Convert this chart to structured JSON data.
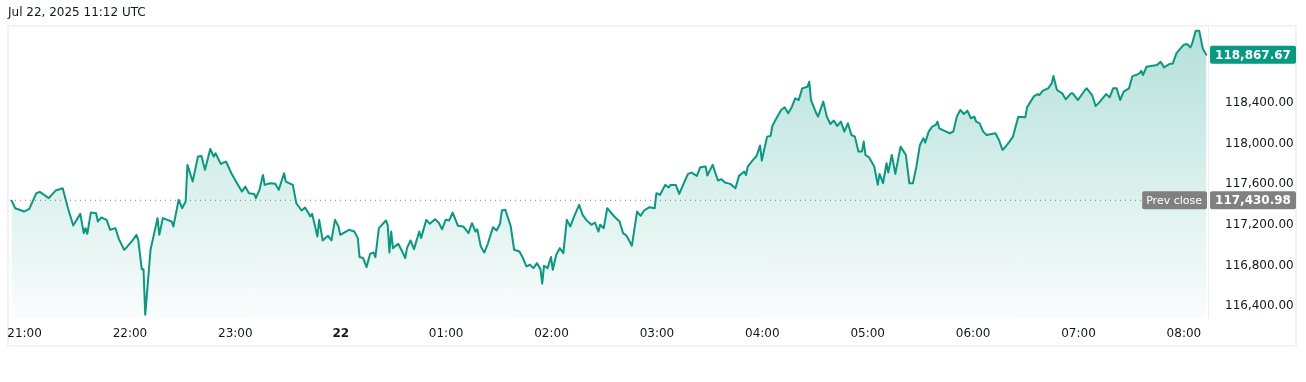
{
  "chart_data": {
    "type": "area",
    "title": "Jul 22, 2025 11:12 UTC",
    "xlim": [
      "2025-07-21T20:52",
      "2025-07-22T08:14"
    ],
    "xticks": [
      {
        "value": "2025-07-21T21:00",
        "label": "21:00"
      },
      {
        "value": "2025-07-21T22:00",
        "label": "22:00"
      },
      {
        "value": "2025-07-21T23:00",
        "label": "23:00"
      },
      {
        "value": "2025-07-22T00:00",
        "label": "22"
      },
      {
        "value": "2025-07-22T01:00",
        "label": "01:00"
      },
      {
        "value": "2025-07-22T02:00",
        "label": "02:00"
      },
      {
        "value": "2025-07-22T03:00",
        "label": "03:00"
      },
      {
        "value": "2025-07-22T04:00",
        "label": "04:00"
      },
      {
        "value": "2025-07-22T05:00",
        "label": "05:00"
      },
      {
        "value": "2025-07-22T06:00",
        "label": "06:00"
      },
      {
        "value": "2025-07-22T07:00",
        "label": "07:00"
      },
      {
        "value": "2025-07-22T08:00",
        "label": "08:00"
      }
    ],
    "ylim": [
      116270,
      119150
    ],
    "yticks": [
      {
        "value": 116400,
        "label": "116,400.00"
      },
      {
        "value": 116800,
        "label": "116,800.00"
      },
      {
        "value": 117200,
        "label": "117,200.00"
      },
      {
        "value": 117600,
        "label": "117,600.00"
      },
      {
        "value": 118000,
        "label": "118,000.00"
      },
      {
        "value": 118400,
        "label": "118,400.00"
      }
    ],
    "grid": false,
    "ref_lines": [
      {
        "axis": "y",
        "value": 117430.98,
        "label": "Prev close",
        "line_style": "dotted",
        "color": "#787b86"
      }
    ],
    "annotations": [
      {
        "text": "118,867.67",
        "x": "2025-07-22T08:13",
        "y": 118867.67
      },
      {
        "text": "117,430.98",
        "x": "2025-07-22T08:14",
        "y": 117430.98
      }
    ],
    "series": [
      {
        "color": "#089981",
        "x": [
          "2025-07-21T20:53",
          "2025-07-21T20:55",
          "2025-07-21T21:00",
          "2025-07-21T21:03",
          "2025-07-21T21:07",
          "2025-07-21T21:09",
          "2025-07-21T21:14",
          "2025-07-21T21:18",
          "2025-07-21T21:22",
          "2025-07-21T21:25",
          "2025-07-21T21:28",
          "2025-07-21T21:32",
          "2025-07-21T21:34",
          "2025-07-21T21:35",
          "2025-07-21T21:36",
          "2025-07-21T21:38",
          "2025-07-21T21:41",
          "2025-07-21T21:42",
          "2025-07-21T21:44",
          "2025-07-21T21:47",
          "2025-07-21T21:49",
          "2025-07-21T21:52",
          "2025-07-21T21:54",
          "2025-07-21T21:57",
          "2025-07-21T21:58",
          "2025-07-21T22:02",
          "2025-07-21T22:04",
          "2025-07-21T22:05",
          "2025-07-21T22:07",
          "2025-07-21T22:08",
          "2025-07-21T22:09",
          "2025-07-21T22:12",
          "2025-07-21T22:16",
          "2025-07-21T22:17",
          "2025-07-21T22:19",
          "2025-07-21T22:24",
          "2025-07-21T22:25",
          "2025-07-21T22:28",
          "2025-07-21T22:30",
          "2025-07-21T22:32",
          "2025-07-21T22:33",
          "2025-07-21T22:36",
          "2025-07-21T22:39",
          "2025-07-21T22:41",
          "2025-07-21T22:43",
          "2025-07-21T22:46",
          "2025-07-21T22:48",
          "2025-07-21T22:49",
          "2025-07-21T22:52",
          "2025-07-21T22:55",
          "2025-07-21T22:58",
          "2025-07-21T23:01",
          "2025-07-21T23:04",
          "2025-07-21T23:06",
          "2025-07-21T23:08",
          "2025-07-21T23:11",
          "2025-07-21T23:12",
          "2025-07-21T23:14",
          "2025-07-21T23:16",
          "2025-07-21T23:17",
          "2025-07-21T23:20",
          "2025-07-21T23:23",
          "2025-07-21T23:25",
          "2025-07-21T23:28",
          "2025-07-21T23:29",
          "2025-07-21T23:33",
          "2025-07-21T23:35",
          "2025-07-21T23:38",
          "2025-07-21T23:40",
          "2025-07-21T23:43",
          "2025-07-21T23:44",
          "2025-07-21T23:47",
          "2025-07-21T23:48",
          "2025-07-21T23:50",
          "2025-07-21T23:53",
          "2025-07-21T23:55",
          "2025-07-21T23:57",
          "2025-07-21T23:59",
          "2025-07-22T00:00",
          "2025-07-22T00:05",
          "2025-07-22T00:08",
          "2025-07-22T00:10",
          "2025-07-22T00:11",
          "2025-07-22T00:13",
          "2025-07-22T00:15",
          "2025-07-22T00:17",
          "2025-07-22T00:19",
          "2025-07-22T00:20",
          "2025-07-22T00:22",
          "2025-07-22T00:26",
          "2025-07-22T00:27",
          "2025-07-22T00:28",
          "2025-07-22T00:29",
          "2025-07-22T00:30",
          "2025-07-22T00:33",
          "2025-07-22T00:35",
          "2025-07-22T00:37",
          "2025-07-22T00:38",
          "2025-07-22T00:40",
          "2025-07-22T00:42",
          "2025-07-22T00:45",
          "2025-07-22T00:46",
          "2025-07-22T00:49",
          "2025-07-22T00:51",
          "2025-07-22T00:54",
          "2025-07-22T00:56",
          "2025-07-22T00:58",
          "2025-07-22T01:00",
          "2025-07-22T01:02",
          "2025-07-22T01:04",
          "2025-07-22T01:07",
          "2025-07-22T01:10",
          "2025-07-22T01:13",
          "2025-07-22T01:15",
          "2025-07-22T01:17",
          "2025-07-22T01:18",
          "2025-07-22T01:20",
          "2025-07-22T01:22",
          "2025-07-22T01:24",
          "2025-07-22T01:27",
          "2025-07-22T01:29",
          "2025-07-22T01:31",
          "2025-07-22T01:32",
          "2025-07-22T01:34",
          "2025-07-22T01:37",
          "2025-07-22T01:39",
          "2025-07-22T01:42",
          "2025-07-22T01:44",
          "2025-07-22T01:46",
          "2025-07-22T01:48",
          "2025-07-22T01:50",
          "2025-07-22T01:52",
          "2025-07-22T01:54",
          "2025-07-22T01:55",
          "2025-07-22T01:56",
          "2025-07-22T01:58",
          "2025-07-22T02:00",
          "2025-07-22T02:01",
          "2025-07-22T02:03",
          "2025-07-22T02:05",
          "2025-07-22T02:07",
          "2025-07-22T02:09",
          "2025-07-22T02:11",
          "2025-07-22T02:13",
          "2025-07-22T02:16",
          "2025-07-22T02:18",
          "2025-07-22T02:20",
          "2025-07-22T02:23",
          "2025-07-22T02:25",
          "2025-07-22T02:27",
          "2025-07-22T02:28",
          "2025-07-22T02:30",
          "2025-07-22T02:32",
          "2025-07-22T02:36",
          "2025-07-22T02:39",
          "2025-07-22T02:41",
          "2025-07-22T02:43",
          "2025-07-22T02:46",
          "2025-07-22T02:49",
          "2025-07-22T02:51",
          "2025-07-22T02:53",
          "2025-07-22T02:56",
          "2025-07-22T02:59",
          "2025-07-22T03:00",
          "2025-07-22T03:02",
          "2025-07-22T03:05",
          "2025-07-22T03:07",
          "2025-07-22T03:08",
          "2025-07-22T03:11",
          "2025-07-22T03:13",
          "2025-07-22T03:16",
          "2025-07-22T03:18",
          "2025-07-22T03:20",
          "2025-07-22T03:23",
          "2025-07-22T03:25",
          "2025-07-22T03:28",
          "2025-07-22T03:29",
          "2025-07-22T03:32",
          "2025-07-22T03:35",
          "2025-07-22T03:37",
          "2025-07-22T03:39",
          "2025-07-22T03:42",
          "2025-07-22T03:45",
          "2025-07-22T03:47",
          "2025-07-22T03:50",
          "2025-07-22T03:51",
          "2025-07-22T03:52",
          "2025-07-22T03:55",
          "2025-07-22T03:57",
          "2025-07-22T03:59",
          "2025-07-22T04:00",
          "2025-07-22T04:03",
          "2025-07-22T04:05",
          "2025-07-22T04:06",
          "2025-07-22T04:08",
          "2025-07-22T04:11",
          "2025-07-22T04:13",
          "2025-07-22T04:15",
          "2025-07-22T04:17",
          "2025-07-22T04:19",
          "2025-07-22T04:21",
          "2025-07-22T04:23",
          "2025-07-22T04:26",
          "2025-07-22T04:27",
          "2025-07-22T04:28",
          "2025-07-22T04:31",
          "2025-07-22T04:32",
          "2025-07-22T04:35",
          "2025-07-22T04:37",
          "2025-07-22T04:39",
          "2025-07-22T04:41",
          "2025-07-22T04:43",
          "2025-07-22T04:45",
          "2025-07-22T04:47",
          "2025-07-22T04:49",
          "2025-07-22T04:51",
          "2025-07-22T04:53",
          "2025-07-22T04:55",
          "2025-07-22T04:57",
          "2025-07-22T04:58",
          "2025-07-22T04:59",
          "2025-07-22T05:01",
          "2025-07-22T05:04",
          "2025-07-22T05:06",
          "2025-07-22T05:07",
          "2025-07-22T05:09",
          "2025-07-22T05:11",
          "2025-07-22T05:12",
          "2025-07-22T05:14",
          "2025-07-22T05:16",
          "2025-07-22T05:19",
          "2025-07-22T05:22",
          "2025-07-22T05:24",
          "2025-07-22T05:26",
          "2025-07-22T05:28",
          "2025-07-22T05:30",
          "2025-07-22T05:32",
          "2025-07-22T05:33",
          "2025-07-22T05:35",
          "2025-07-22T05:37",
          "2025-07-22T05:39",
          "2025-07-22T05:40",
          "2025-07-22T05:41",
          "2025-07-22T05:44",
          "2025-07-22T05:47",
          "2025-07-22T05:49",
          "2025-07-22T05:51",
          "2025-07-22T05:53",
          "2025-07-22T05:55",
          "2025-07-22T05:57",
          "2025-07-22T05:59",
          "2025-07-22T06:01",
          "2025-07-22T06:02",
          "2025-07-22T06:04",
          "2025-07-22T06:06",
          "2025-07-22T06:08",
          "2025-07-22T06:13",
          "2025-07-22T06:15",
          "2025-07-22T06:17",
          "2025-07-22T06:18",
          "2025-07-22T06:21",
          "2025-07-22T06:23",
          "2025-07-22T06:26",
          "2025-07-22T06:30",
          "2025-07-22T06:31",
          "2025-07-22T06:33",
          "2025-07-22T06:35",
          "2025-07-22T06:37",
          "2025-07-22T06:38",
          "2025-07-22T06:40",
          "2025-07-22T06:43",
          "2025-07-22T06:45",
          "2025-07-22T06:46",
          "2025-07-22T06:48",
          "2025-07-22T06:51",
          "2025-07-22T06:53",
          "2025-07-22T06:56",
          "2025-07-22T06:57",
          "2025-07-22T07:00",
          "2025-07-22T07:04",
          "2025-07-22T07:05",
          "2025-07-22T07:08",
          "2025-07-22T07:10",
          "2025-07-22T07:12",
          "2025-07-22T07:16",
          "2025-07-22T07:18",
          "2025-07-22T07:20",
          "2025-07-22T07:22",
          "2025-07-22T07:24",
          "2025-07-22T07:26",
          "2025-07-22T07:29",
          "2025-07-22T07:31",
          "2025-07-22T07:33",
          "2025-07-22T07:35",
          "2025-07-22T07:36",
          "2025-07-22T07:37",
          "2025-07-22T07:39",
          "2025-07-22T07:45",
          "2025-07-22T07:47",
          "2025-07-22T07:49",
          "2025-07-22T07:52",
          "2025-07-22T07:54",
          "2025-07-22T07:56",
          "2025-07-22T08:00",
          "2025-07-22T08:02",
          "2025-07-22T08:04",
          "2025-07-22T08:05",
          "2025-07-22T08:07",
          "2025-07-22T08:09",
          "2025-07-22T08:11",
          "2025-07-22T08:13"
        ],
        "values": [
          117425,
          117353,
          117320,
          117347,
          117501,
          117514,
          117452,
          117527,
          117550,
          117353,
          117182,
          117297,
          117107,
          117156,
          117100,
          117310,
          117304,
          117222,
          117261,
          117238,
          117140,
          117156,
          117048,
          116943,
          116959,
          117041,
          117090,
          117041,
          116752,
          116752,
          116303,
          116943,
          117255,
          117090,
          117255,
          117222,
          117173,
          117435,
          117353,
          117419,
          117780,
          117616,
          117862,
          117868,
          117731,
          117937,
          117862,
          117895,
          117790,
          117813,
          117698,
          117606,
          117517,
          117566,
          117501,
          117494,
          117452,
          117534,
          117681,
          117583,
          117599,
          117593,
          117534,
          117698,
          117616,
          117583,
          117402,
          117330,
          117360,
          117271,
          117297,
          117074,
          117238,
          117035,
          117081,
          117035,
          117238,
          117173,
          117090,
          117140,
          117123,
          117058,
          116871,
          116861,
          116772,
          116903,
          116916,
          116871,
          117156,
          117232,
          117189,
          116916,
          117123,
          116959,
          117002,
          116936,
          116861,
          116959,
          117035,
          116949,
          117123,
          117058,
          117238,
          117199,
          117245,
          117212,
          117146,
          117238,
          117232,
          117310,
          117179,
          117173,
          117107,
          117205,
          117123,
          117146,
          116976,
          116916,
          117002,
          117166,
          117133,
          117199,
          117330,
          117337,
          117179,
          116943,
          116926,
          116861,
          116779,
          116795,
          116762,
          116811,
          116752,
          116608,
          116785,
          116762,
          116871,
          116746,
          116893,
          116959,
          116910,
          117238,
          117173,
          117264,
          117386,
          117287,
          117238,
          117189,
          117212,
          117123,
          117189,
          117156,
          117353,
          117271,
          117222,
          117107,
          117081,
          116982,
          117320,
          117278,
          117330,
          117363,
          117353,
          117501,
          117484,
          117583,
          117557,
          117583,
          117583,
          117494,
          117616,
          117691,
          117704,
          117672,
          117757,
          117764,
          117675,
          117780,
          117626,
          117639,
          117606,
          117593,
          117550,
          117672,
          117714,
          117681,
          117764,
          117829,
          117868,
          117970,
          117823,
          118059,
          118066,
          118164,
          118230,
          118322,
          118348,
          118289,
          118348,
          118436,
          118420,
          118535,
          118551,
          118601,
          118420,
          118289,
          118256,
          118404,
          118256,
          118184,
          118217,
          118164,
          118207,
          118108,
          118190,
          118075,
          118059,
          117911,
          117911,
          118010,
          117878,
          117855,
          117764,
          117583,
          117691,
          117599,
          117796,
          117704,
          117878,
          117691,
          117960,
          117878,
          117599,
          117599,
          117763,
          117977,
          118043,
          118000,
          118108,
          118157,
          118174,
          118207,
          118141,
          118115,
          118092,
          118108,
          118256,
          118322,
          118282,
          118315,
          118240,
          118256,
          118207,
          118190,
          118108,
          118075,
          118092,
          118026,
          117928,
          117944,
          118010,
          118059,
          118256,
          118249,
          118348,
          118404,
          118459,
          118479,
          118469,
          118512,
          118535,
          118584,
          118656,
          118519,
          118486,
          118427,
          118486,
          118486,
          118420,
          118519,
          118535,
          118469,
          118361,
          118394,
          118479,
          118446,
          118535,
          118535,
          118420,
          118502,
          118535,
          118656,
          118666,
          118683,
          118709,
          118666,
          118748,
          118765,
          118798,
          118742,
          118775,
          118781,
          118880,
          118962,
          118972,
          118939,
          118978,
          119103,
          119103,
          118929,
          118867.67
        ]
      }
    ]
  }
}
